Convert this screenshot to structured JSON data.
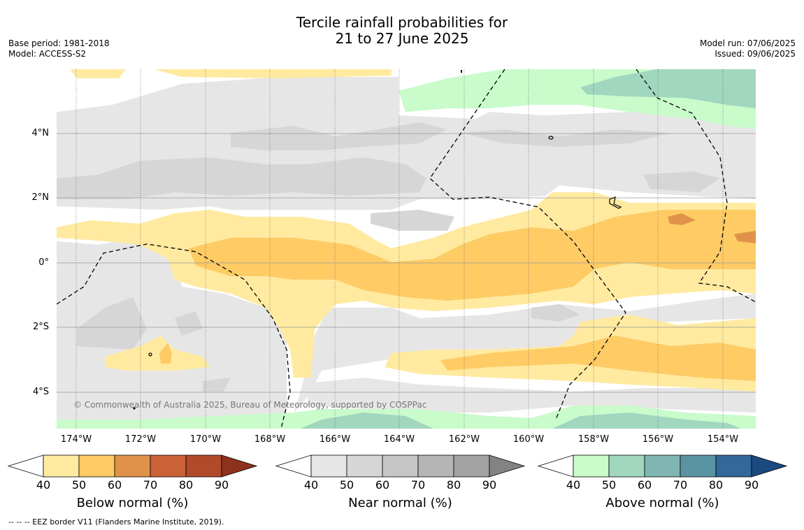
{
  "title_line1": "Tercile rainfall probabilities for",
  "title_line2": "21 to 27 June 2025",
  "base_period": "Base period: 1981-2018",
  "model": "Model: ACCESS-S2",
  "model_run": "Model run: 07/06/2025",
  "issued": "Issued: 09/06/2025",
  "copyright": "© Commonwealth of Australia 2025, Bureau of Meteorology, supported by COSPPac",
  "footnote": "--  --  -- EEZ border V11 (Flanders Marine Institute, 2019).",
  "lon_labels": [
    "174°W",
    "172°W",
    "170°W",
    "168°W",
    "166°W",
    "164°W",
    "162°W",
    "160°W",
    "158°W",
    "156°W",
    "154°W"
  ],
  "lat_labels": [
    "4°N",
    "2°N",
    "0°",
    "2°S",
    "4°S"
  ],
  "colorbars": [
    {
      "label": "Below normal (%)",
      "ticks": [
        "40",
        "50",
        "60",
        "70",
        "80",
        "90"
      ],
      "colors": [
        "#ffffff",
        "#ffeaa0",
        "#fecb65",
        "#e0924a",
        "#cb6235",
        "#b04a2a",
        "#8f321d"
      ]
    },
    {
      "label": "Near normal (%)",
      "ticks": [
        "40",
        "50",
        "60",
        "70",
        "80",
        "90"
      ],
      "colors": [
        "#ffffff",
        "#e6e6e6",
        "#d6d6d6",
        "#c6c6c6",
        "#b5b5b5",
        "#a3a3a3",
        "#838383"
      ]
    },
    {
      "label": "Above normal (%)",
      "ticks": [
        "40",
        "50",
        "60",
        "70",
        "80",
        "90"
      ],
      "colors": [
        "#ffffff",
        "#c9fbcb",
        "#a1d6bf",
        "#7fb6b2",
        "#5a94a2",
        "#34679a",
        "#1b4a80"
      ]
    }
  ]
}
